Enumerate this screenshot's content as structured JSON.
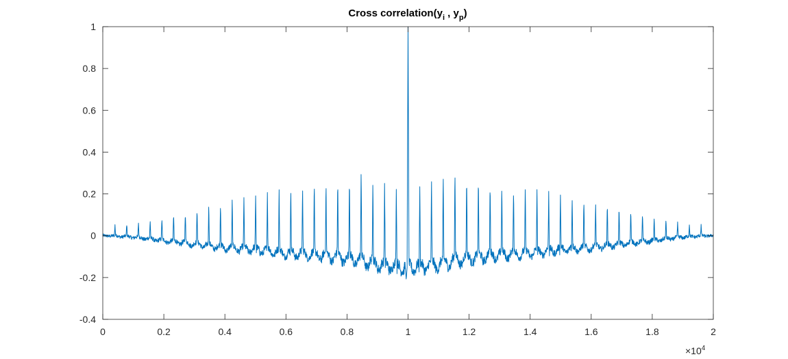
{
  "chart_data": {
    "type": "line",
    "title": {
      "main": "Cross correlation(y",
      "sub1": "i",
      "mid": " , y",
      "sub2": "p",
      "end": ")"
    },
    "xlabel": "",
    "ylabel": "",
    "xlim": [
      0,
      2
    ],
    "ylim": [
      -0.4,
      1
    ],
    "x_exponent": {
      "times": "×10",
      "power": "4"
    },
    "x_ticks": [
      0,
      0.2,
      0.4,
      0.6,
      0.8,
      1,
      1.2,
      1.4,
      1.6,
      1.8,
      2
    ],
    "x_tick_labels": [
      "0",
      "0.2",
      "0.4",
      "0.6",
      "0.8",
      "1",
      "1.2",
      "1.4",
      "1.6",
      "1.8",
      "2"
    ],
    "y_ticks": [
      -0.4,
      -0.2,
      0,
      0.2,
      0.4,
      0.6,
      0.8,
      1
    ],
    "y_tick_labels": [
      "-0.4",
      "-0.2",
      "0",
      "0.2",
      "0.4",
      "0.6",
      "0.8",
      "1"
    ],
    "grid": false,
    "series_color": "#0072BD",
    "center_x": 1.0,
    "center_value": 1.0,
    "center_dip": -0.21,
    "period": 0.0384,
    "peak_envelope": [
      [
        0.0,
        0.0
      ],
      [
        0.04,
        0.05
      ],
      [
        0.1,
        0.06
      ],
      [
        0.2,
        0.09
      ],
      [
        0.3,
        0.14
      ],
      [
        0.4,
        0.17
      ],
      [
        0.5,
        0.2
      ],
      [
        0.6,
        0.23
      ],
      [
        0.7,
        0.25
      ],
      [
        0.8,
        0.29
      ],
      [
        0.84,
        0.35
      ],
      [
        0.9,
        0.28
      ],
      [
        0.96,
        0.25
      ],
      [
        1.0,
        0.25
      ]
    ],
    "trough_envelope": [
      [
        0.0,
        0.0
      ],
      [
        0.1,
        -0.01
      ],
      [
        0.2,
        -0.03
      ],
      [
        0.3,
        -0.05
      ],
      [
        0.4,
        -0.07
      ],
      [
        0.5,
        -0.08
      ],
      [
        0.6,
        -0.1
      ],
      [
        0.7,
        -0.11
      ],
      [
        0.8,
        -0.13
      ],
      [
        0.9,
        -0.16
      ],
      [
        0.97,
        -0.17
      ],
      [
        1.0,
        -0.17
      ]
    ]
  }
}
